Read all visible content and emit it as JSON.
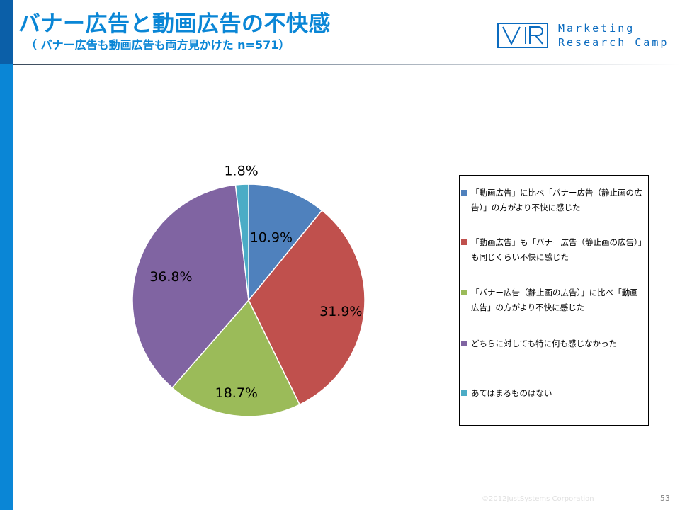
{
  "header": {
    "title": "バナー広告と動画広告の不快感",
    "subtitle": "（ バナー広告も動画広告も両方見かけた n=571）"
  },
  "logo": {
    "mark_text": "VRI",
    "line1": "Marketing",
    "line2": "Research Camp",
    "color": "#0b6bbf"
  },
  "chart_data": {
    "type": "pie",
    "start": "12 o'clock, clockwise",
    "slices": [
      {
        "label": "「動画広告」に比べ「バナー広告（静止画の広告）」の方がより不快に感じた",
        "value": 10.9,
        "display": "10.9%",
        "color": "#4f81bd"
      },
      {
        "label": "「動画広告」も「バナー広告（静止画の広告）」も同じくらい不快に感じた",
        "value": 31.9,
        "display": "31.9%",
        "color": "#c0504d"
      },
      {
        "label": "「バナー広告（静止画の広告）」に比べ「動画広告」の方がより不快に感じた",
        "value": 18.7,
        "display": "18.7%",
        "color": "#9bbb59"
      },
      {
        "label": "どちらに対しても特に何も感じなかった",
        "value": 36.8,
        "display": "36.8%",
        "color": "#8064a2"
      },
      {
        "label": "あてはまるものはない",
        "value": 1.8,
        "display": "1.8%",
        "color": "#4bacc6"
      }
    ],
    "legend_position": "right"
  },
  "legend": {
    "items": [
      {
        "line1": "「動画広告」に比べ「バナー広告（静止画の広",
        "line2": "告）」の方がより不快に感じた"
      },
      {
        "line1": "「動画広告」も「バナー広告（静止画の広告）」",
        "line2": "も同じくらい不快に感じた"
      },
      {
        "line1": "「バナー広告（静止画の広告）」に比べ「動画",
        "line2": "広告」の方がより不快に感じた"
      },
      {
        "line1": "どちらに対しても特に何も感じなかった",
        "line2": ""
      },
      {
        "line1": "あてはまるものはない",
        "line2": ""
      }
    ]
  },
  "footer": {
    "copyright": "©2012JustSystems Corporation",
    "page_number": "53"
  }
}
